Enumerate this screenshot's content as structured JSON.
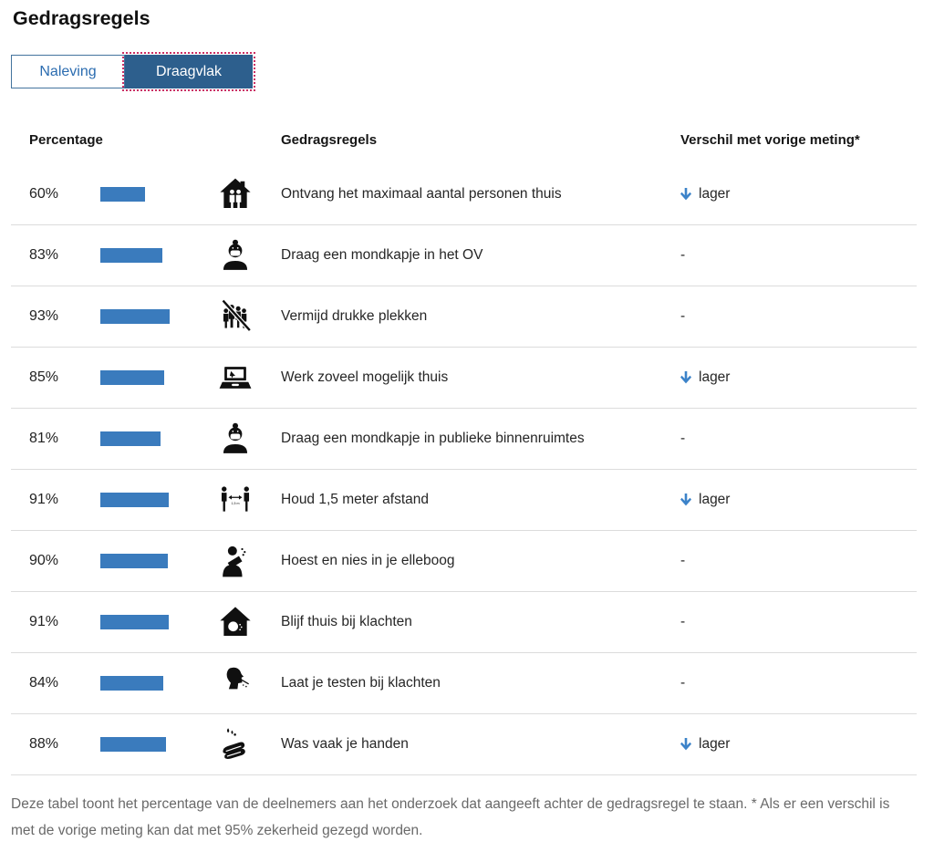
{
  "page": {
    "title": "Gedragsregels"
  },
  "tabs": [
    {
      "label": "Naleving",
      "active": false
    },
    {
      "label": "Draagvlak",
      "active": true
    }
  ],
  "table": {
    "headers": {
      "percentage": "Percentage",
      "rule": "Gedragsregels",
      "change": "Verschil met vorige meting*"
    },
    "rows": [
      {
        "pct_label": "60%",
        "value": 60,
        "icon": "home-visitors-icon",
        "label": "Ontvang het maximaal aantal personen thuis",
        "change": "lager",
        "arrow_down": true
      },
      {
        "pct_label": "83%",
        "value": 83,
        "icon": "face-mask-icon",
        "label": "Draag een mondkapje in het OV",
        "change": "-",
        "arrow_down": false
      },
      {
        "pct_label": "93%",
        "value": 93,
        "icon": "avoid-crowds-icon",
        "label": "Vermijd drukke plekken",
        "change": "-",
        "arrow_down": false
      },
      {
        "pct_label": "85%",
        "value": 85,
        "icon": "laptop-icon",
        "label": "Werk zoveel mogelijk thuis",
        "change": "lager",
        "arrow_down": true
      },
      {
        "pct_label": "81%",
        "value": 81,
        "icon": "face-mask-icon",
        "label": "Draag een mondkapje in publieke binnenruimtes",
        "change": "-",
        "arrow_down": false
      },
      {
        "pct_label": "91%",
        "value": 91,
        "icon": "distance-icon",
        "label": "Houd 1,5 meter afstand",
        "change": "lager",
        "arrow_down": true
      },
      {
        "pct_label": "90%",
        "value": 90,
        "icon": "cough-elbow-icon",
        "label": "Hoest en nies in je elleboog",
        "change": "-",
        "arrow_down": false
      },
      {
        "pct_label": "91%",
        "value": 91,
        "icon": "stay-home-icon",
        "label": "Blijf thuis bij klachten",
        "change": "-",
        "arrow_down": false
      },
      {
        "pct_label": "84%",
        "value": 84,
        "icon": "test-icon",
        "label": "Laat je testen bij klachten",
        "change": "-",
        "arrow_down": false
      },
      {
        "pct_label": "88%",
        "value": 88,
        "icon": "wash-hands-icon",
        "label": "Was vaak je handen",
        "change": "lager",
        "arrow_down": true
      }
    ]
  },
  "footer": {
    "note": "Deze tabel toont het percentage van de deelnemers aan het onderzoek dat aangeeft achter de gedragsregel te staan. * Als er een verschil is met de vorige meting kan dat met 95% zekerheid gezegd worden."
  },
  "colors": {
    "bar": "#3a7bbd",
    "tab_active_bg": "#2d5f8d",
    "tab_text": "#2b6cb0",
    "focus_outline": "#ca2e63",
    "arrow": "#3c83c9"
  },
  "chart_data": {
    "type": "bar",
    "orientation": "horizontal",
    "title": "Gedragsregels — Draagvlak",
    "categories": [
      "Ontvang het maximaal aantal personen thuis",
      "Draag een mondkapje in het OV",
      "Vermijd drukke plekken",
      "Werk zoveel mogelijk thuis",
      "Draag een mondkapje in publieke binnenruimtes",
      "Houd 1,5 meter afstand",
      "Hoest en nies in je elleboog",
      "Blijf thuis bij klachten",
      "Laat je testen bij klachten",
      "Was vaak je handen"
    ],
    "values": [
      60,
      83,
      93,
      85,
      81,
      91,
      90,
      91,
      84,
      88
    ],
    "unit": "%",
    "xlim": [
      0,
      100
    ],
    "xlabel": "Percentage",
    "ylabel": "Gedragsregels",
    "annotations_change_vs_previous": [
      "lager",
      "-",
      "-",
      "lager",
      "-",
      "lager",
      "-",
      "-",
      "-",
      "lager"
    ]
  }
}
